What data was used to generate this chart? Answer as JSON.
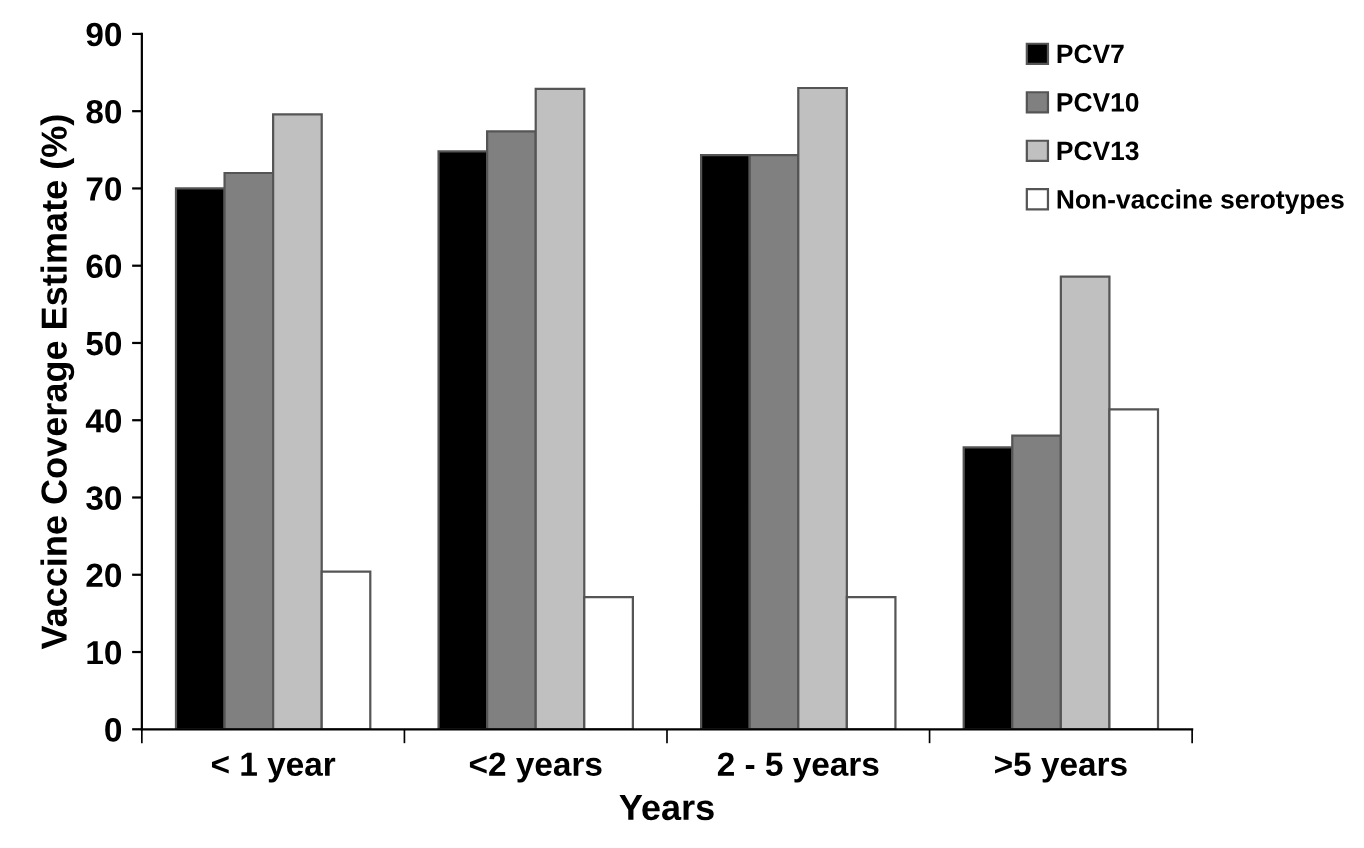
{
  "chart_data": {
    "type": "bar",
    "xlabel": "Years",
    "ylabel": "Vaccine Coverage Estimate (%)",
    "categories": [
      "< 1 year",
      "<2 years",
      "2 - 5 years",
      ">5 years"
    ],
    "series": [
      {
        "name": "PCV7",
        "color": "#000000",
        "values": [
          70.0,
          74.8,
          74.3,
          36.5
        ]
      },
      {
        "name": "PCV10",
        "color": "#808080",
        "values": [
          72.0,
          77.4,
          74.3,
          38.0
        ]
      },
      {
        "name": "PCV13",
        "color": "#c0c0c0",
        "values": [
          79.6,
          82.9,
          83.0,
          58.6
        ]
      },
      {
        "name": "Non-vaccine serotypes",
        "color": "#ffffff",
        "values": [
          20.4,
          17.1,
          17.1,
          41.4
        ]
      }
    ],
    "ylim": [
      0,
      90
    ],
    "yticks": [
      0,
      10,
      20,
      30,
      40,
      50,
      60,
      70,
      80,
      90
    ],
    "grid": false,
    "legend": "top right"
  }
}
